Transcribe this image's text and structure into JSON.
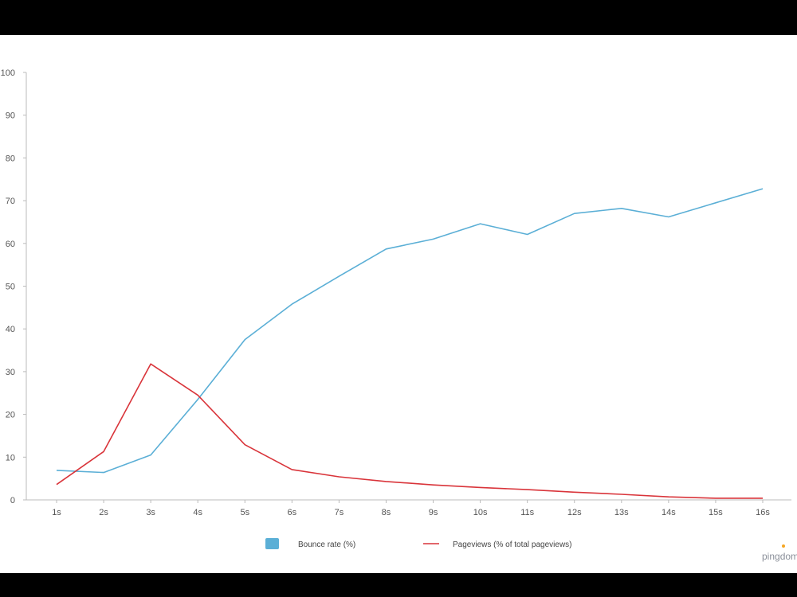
{
  "chart_data": {
    "type": "line",
    "categories": [
      "1s",
      "2s",
      "3s",
      "4s",
      "5s",
      "6s",
      "7s",
      "8s",
      "9s",
      "10s",
      "11s",
      "12s",
      "13s",
      "14s",
      "15s",
      "16s"
    ],
    "yticks": [
      "0",
      "10",
      "20",
      "30",
      "40",
      "50",
      "60",
      "70",
      "80",
      "90",
      "100"
    ],
    "ylim": [
      0,
      100
    ],
    "grid": false,
    "legend_position": "bottom",
    "series": [
      {
        "name": "Bounce rate  (%)",
        "color": "#5bafd6",
        "values": [
          6.9,
          6.4,
          10.5,
          23.5,
          37.5,
          45.8,
          52.3,
          58.7,
          61.0,
          64.6,
          62.1,
          67.0,
          68.2,
          66.2,
          69.5,
          72.8
        ]
      },
      {
        "name": "Pageviews (% of total pageviews)",
        "color": "#d9343a",
        "values": [
          3.6,
          11.3,
          31.8,
          24.5,
          12.9,
          7.1,
          5.4,
          4.3,
          3.5,
          2.9,
          2.4,
          1.8,
          1.3,
          0.7,
          0.4,
          0.4
        ]
      }
    ]
  },
  "branding": {
    "logo_text": "pingdom"
  }
}
